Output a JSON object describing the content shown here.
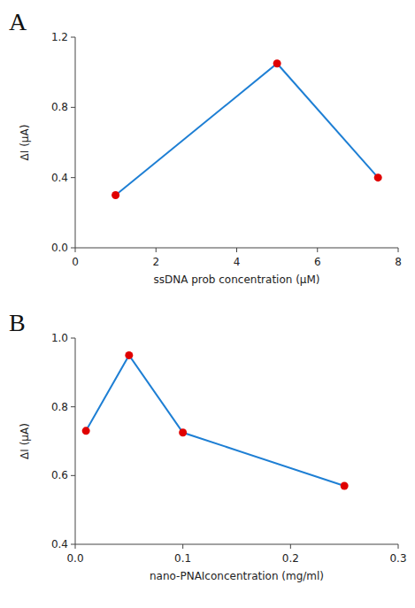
{
  "chart_data": [
    {
      "type": "line",
      "title": "A",
      "x": [
        1,
        5,
        7.5
      ],
      "values": [
        0.3,
        1.05,
        0.4
      ],
      "x_label": "ssDNA prob concentration (μM)",
      "y_label": "ΔI (μA)",
      "xlim": [
        0,
        8
      ],
      "ylim": [
        0,
        1.2
      ],
      "xticks": [
        0,
        2,
        4,
        6,
        8
      ],
      "yticks": [
        {
          "value": 0,
          "label": "0.0"
        },
        0.4,
        0.8,
        1.2
      ],
      "color": "#1e7fd4",
      "colors": [
        "#e00000",
        "#e00000",
        "#e00000"
      ],
      "marker": "circle"
    },
    {
      "type": "line",
      "title": "B",
      "x": [
        0.01,
        0.05,
        0.1,
        0.25
      ],
      "values": [
        0.73,
        0.95,
        0.725,
        0.57
      ],
      "x_label": "nano-PNAIconcentration (mg/ml)",
      "y_label": "ΔI (μA)",
      "xlim": [
        0,
        0.3
      ],
      "ylim": [
        0.4,
        1.0
      ],
      "xticks": [
        {
          "value": 0,
          "label": "0.0"
        },
        0.1,
        0.2,
        0.3
      ],
      "yticks": [
        0.4,
        0.6,
        0.8,
        {
          "value": 1,
          "label": "1.0"
        }
      ],
      "color": "#1e7fd4",
      "colors": [
        "#e00000",
        "#e00000",
        "#e00000",
        "#e00000"
      ],
      "marker": "circle"
    }
  ]
}
